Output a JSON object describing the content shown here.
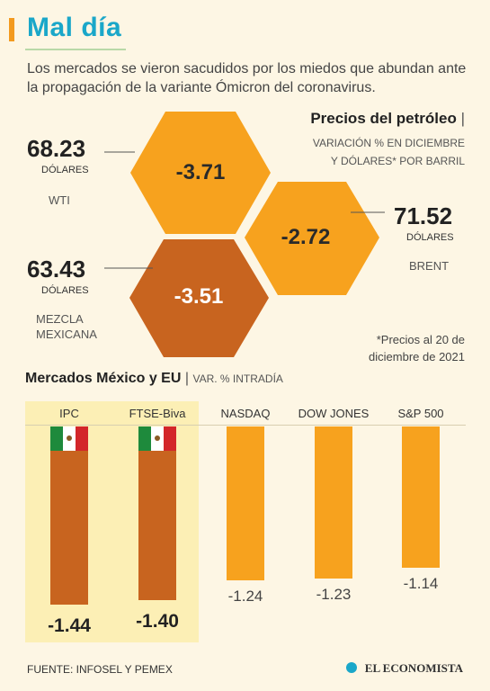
{
  "headline": "Mal día",
  "intro": "Los mercados se vieron sacudidos por los miedos que abundan ante la propagación de la variante Ómicron del coronavirus.",
  "oil": {
    "title": "Precios del petróleo",
    "subtitle_line1": "VARIACIÓN % EN DICIEMBRE",
    "subtitle_line2": "Y DÓLARES* POR BARRIL",
    "footnote_line1": "*Precios al 20 de",
    "footnote_line2": "diciembre de 2021",
    "items": [
      {
        "name": "WTI",
        "price": "68.23",
        "unit": "DÓLARES",
        "change": "-3.71"
      },
      {
        "name": "BRENT",
        "price": "71.52",
        "unit": "DÓLARES",
        "change": "-2.72"
      },
      {
        "name_line1": "MEZCLA",
        "name_line2": "MEXICANA",
        "price": "63.43",
        "unit": "DÓLARES",
        "change": "-3.51"
      }
    ]
  },
  "markets": {
    "title": "Mercados México y EU",
    "subtitle": "VAR. % INTRADÍA"
  },
  "chart_data": [
    {
      "type": "bar",
      "title": "Mercados México y EU",
      "subtitle": "VAR. % INTRADÍA",
      "categories": [
        "IPC",
        "FTSE-Biva",
        "NASDAQ",
        "DOW JONES",
        "S&P 500"
      ],
      "values": [
        -1.44,
        -1.4,
        -1.24,
        -1.23,
        -1.14
      ],
      "value_labels": [
        "-1.44",
        "-1.40",
        "-1.24",
        "-1.23",
        "-1.14"
      ],
      "ylim": [
        -1.5,
        0
      ],
      "grid": false,
      "colors": {
        "mexico": "#c8641f",
        "us": "#f7a21e",
        "mexico_panel": "#fcefb5"
      }
    }
  ],
  "colors": {
    "title": "#1aa7c9",
    "accent": "#f39a1e",
    "hex_light": "#f7a21e",
    "hex_dark": "#c8641f",
    "background": "#fdf6e4"
  },
  "source": "FUENTE: INFOSEL Y PEMEX",
  "brand": "EL ECONOMISTA"
}
